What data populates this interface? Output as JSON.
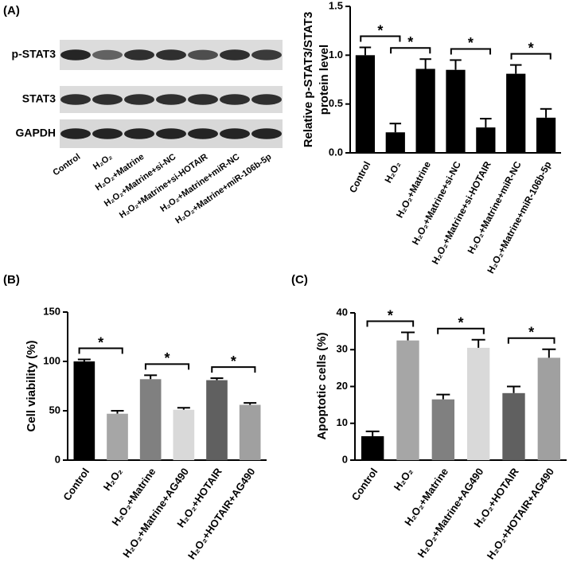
{
  "blot": {
    "panel": "(A)",
    "rows": [
      "p-STAT3",
      "STAT3",
      "GAPDH"
    ],
    "lanes": [
      "Control",
      "H₂O₂",
      "H₂O₂+Matrine",
      "H₂O₂+Matrine+si-NC",
      "H₂O₂+Matrine+si-HOTAIR",
      "H₂O₂+Matrine+miR-NC",
      "H₂O₂+Matrine+miR-106b-5p"
    ]
  },
  "chart_data": [
    {
      "type": "bar",
      "ylabel": [
        "Relative p-STAT3/STAT3",
        "protein level"
      ],
      "categories": [
        "Control",
        "H₂O₂",
        "H₂O₂+Matrine",
        "H₂O₂+Matrine+si-NC",
        "H₂O₂+Matrine+si-HOTAIR",
        "H₂O₂+Matrine+miR-NC",
        "H₂O₂+Matrine+miR-106b-5p"
      ],
      "values": [
        1.0,
        0.21,
        0.86,
        0.85,
        0.26,
        0.81,
        0.36
      ],
      "errors": [
        0.08,
        0.09,
        0.1,
        0.1,
        0.09,
        0.09,
        0.09
      ],
      "colors": [
        "#000000",
        "#000000",
        "#000000",
        "#000000",
        "#000000",
        "#000000",
        "#000000"
      ],
      "ylim": [
        0,
        1.5
      ],
      "yticks": [
        {
          "value": 0,
          "label": "0.0"
        },
        0.5,
        {
          "value": 1,
          "label": "1.0"
        },
        1.5
      ],
      "significance": [
        {
          "from": 0,
          "to": 1,
          "label": "*"
        },
        {
          "from": 1,
          "to": 2,
          "label": "*"
        },
        {
          "from": 3,
          "to": 4,
          "label": "*"
        },
        {
          "from": 5,
          "to": 6,
          "label": "*"
        }
      ]
    },
    {
      "type": "bar",
      "panel": "(B)",
      "ylabel": [
        "Cell viability (%)"
      ],
      "categories": [
        "Control",
        "H₂O₂",
        "H₂O₂+Matrine",
        "H₂O₂+Matrine+AG490",
        "H₂O₂+HOTAIR",
        "H₂O₂+HOTAIR+AG490"
      ],
      "values": [
        100,
        47,
        82,
        51,
        81,
        56
      ],
      "errors": [
        2,
        3,
        4,
        2,
        2,
        2
      ],
      "colors": [
        "#000000",
        "#a6a6a6",
        "#808080",
        "#d9d9d9",
        "#606060",
        "#a0a0a0"
      ],
      "ylim": [
        0,
        150
      ],
      "yticks": [
        0,
        50,
        100,
        150
      ],
      "significance": [
        {
          "from": 0,
          "to": 1,
          "label": "*"
        },
        {
          "from": 2,
          "to": 3,
          "label": "*"
        },
        {
          "from": 4,
          "to": 5,
          "label": "*"
        }
      ]
    },
    {
      "type": "bar",
      "panel": "(C)",
      "ylabel": [
        "Apoptotic cells (%)"
      ],
      "categories": [
        "Control",
        "H₂O₂",
        "H₂O₂+Matrine",
        "H₂O₂+Matrine+AG490",
        "H₂O₂+HOTAIR",
        "H₂O₂+HOTAIR+AG490"
      ],
      "values": [
        6.5,
        32.5,
        16.5,
        30.5,
        18.2,
        27.8
      ],
      "errors": [
        1.3,
        2.2,
        1.3,
        2.2,
        1.8,
        2.3
      ],
      "colors": [
        "#000000",
        "#a6a6a6",
        "#808080",
        "#d9d9d9",
        "#606060",
        "#a0a0a0"
      ],
      "ylim": [
        0,
        40
      ],
      "yticks": [
        0,
        10,
        20,
        30,
        40
      ],
      "significance": [
        {
          "from": 0,
          "to": 1,
          "label": "*"
        },
        {
          "from": 2,
          "to": 3,
          "label": "*"
        },
        {
          "from": 4,
          "to": 5,
          "label": "*"
        }
      ]
    }
  ]
}
